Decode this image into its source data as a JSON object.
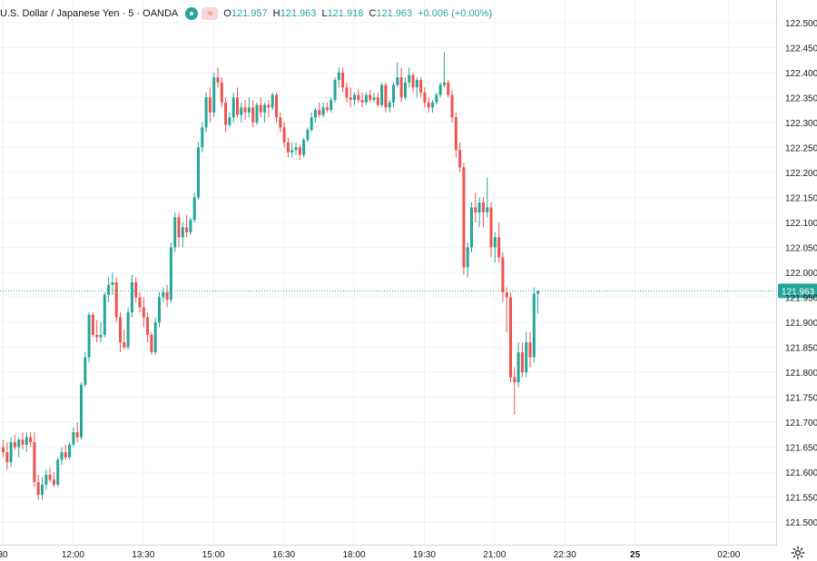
{
  "legend": {
    "symbol": "U.S. Dollar / Japanese Yen · 5 · OANDA",
    "open_label": "O",
    "open": "121.957",
    "high_label": "H",
    "high": "121.963",
    "low_label": "L",
    "low": "121.918",
    "close_label": "C",
    "close": "121.963",
    "change": "+0.006 (+0.00%)",
    "wave_icon": "≈"
  },
  "chart_data": {
    "type": "candlestick",
    "instrument": "U.S. Dollar / Japanese Yen",
    "interval": "5",
    "source": "OANDA",
    "price_axis_ticks": [
      "122.500",
      "122.450",
      "122.400",
      "122.350",
      "122.300",
      "122.250",
      "122.200",
      "122.150",
      "122.100",
      "122.050",
      "122.000",
      "121.950",
      "121.900",
      "121.850",
      "121.800",
      "121.750",
      "121.700",
      "121.650",
      "121.600",
      "121.550",
      "121.500"
    ],
    "time_axis_ticks": [
      {
        "label": "30",
        "bar": 0
      },
      {
        "label": "12:00",
        "bar": 18
      },
      {
        "label": "13:30",
        "bar": 36
      },
      {
        "label": "15:00",
        "bar": 54
      },
      {
        "label": "16:30",
        "bar": 72
      },
      {
        "label": "18:00",
        "bar": 90
      },
      {
        "label": "19:30",
        "bar": 108
      },
      {
        "label": "21:00",
        "bar": 126
      },
      {
        "label": "22:30",
        "bar": 144
      },
      {
        "label": "25",
        "bar": 162
      },
      {
        "label": "02:00",
        "bar": 186
      }
    ],
    "ylim": [
      121.455,
      122.545
    ],
    "last_price": "121.963",
    "current_price_line": 121.963,
    "colors": {
      "up": "#26a69a",
      "down": "#ef5350",
      "grid": "#f0f3fa",
      "text": "#131722"
    },
    "candles": [
      [
        121.65,
        121.665,
        121.63,
        121.64
      ],
      [
        121.64,
        121.66,
        121.605,
        121.62
      ],
      [
        121.62,
        121.67,
        121.61,
        121.66
      ],
      [
        121.66,
        121.675,
        121.645,
        121.65
      ],
      [
        121.65,
        121.67,
        121.63,
        121.665
      ],
      [
        121.665,
        121.68,
        121.645,
        121.655
      ],
      [
        121.655,
        121.68,
        121.64,
        121.67
      ],
      [
        121.67,
        121.68,
        121.65,
        121.66
      ],
      [
        121.66,
        121.68,
        121.57,
        121.58
      ],
      [
        121.58,
        121.595,
        121.545,
        121.555
      ],
      [
        121.555,
        121.59,
        121.545,
        121.575
      ],
      [
        121.575,
        121.605,
        121.565,
        121.595
      ],
      [
        121.595,
        121.61,
        121.58,
        121.585
      ],
      [
        121.585,
        121.6,
        121.57,
        121.575
      ],
      [
        121.575,
        121.63,
        121.57,
        121.625
      ],
      [
        121.625,
        121.65,
        121.615,
        121.64
      ],
      [
        121.64,
        121.655,
        121.625,
        121.63
      ],
      [
        121.63,
        121.66,
        121.625,
        121.655
      ],
      [
        121.655,
        121.69,
        121.65,
        121.68
      ],
      [
        121.68,
        121.7,
        121.66,
        121.67
      ],
      [
        121.67,
        121.78,
        121.665,
        121.775
      ],
      [
        121.775,
        121.84,
        121.77,
        121.83
      ],
      [
        121.83,
        121.92,
        121.82,
        121.915
      ],
      [
        121.915,
        121.92,
        121.87,
        121.875
      ],
      [
        121.875,
        121.905,
        121.86,
        121.87
      ],
      [
        121.87,
        121.9,
        121.86,
        121.875
      ],
      [
        121.875,
        121.96,
        121.87,
        121.955
      ],
      [
        121.955,
        121.99,
        121.94,
        121.975
      ],
      [
        121.975,
        122.0,
        121.955,
        121.98
      ],
      [
        121.98,
        121.99,
        121.9,
        121.91
      ],
      [
        121.91,
        121.92,
        121.84,
        121.86
      ],
      [
        121.86,
        121.885,
        121.845,
        121.85
      ],
      [
        121.85,
        121.93,
        121.845,
        121.92
      ],
      [
        121.92,
        121.995,
        121.91,
        121.98
      ],
      [
        121.98,
        121.99,
        121.94,
        121.95
      ],
      [
        121.95,
        121.96,
        121.92,
        121.93
      ],
      [
        121.93,
        121.95,
        121.89,
        121.91
      ],
      [
        121.91,
        121.92,
        121.86,
        121.875
      ],
      [
        121.875,
        121.88,
        121.835,
        121.84
      ],
      [
        121.84,
        121.91,
        121.835,
        121.9
      ],
      [
        121.9,
        121.96,
        121.89,
        121.95
      ],
      [
        121.95,
        121.97,
        121.94,
        121.96
      ],
      [
        121.96,
        121.975,
        121.93,
        121.945
      ],
      [
        121.945,
        122.06,
        121.94,
        122.05
      ],
      [
        122.05,
        122.12,
        122.04,
        122.11
      ],
      [
        122.11,
        122.12,
        122.05,
        122.07
      ],
      [
        122.07,
        122.1,
        122.05,
        122.09
      ],
      [
        122.09,
        122.115,
        122.07,
        122.08
      ],
      [
        122.08,
        122.11,
        122.075,
        122.105
      ],
      [
        122.105,
        122.16,
        122.1,
        122.15
      ],
      [
        122.15,
        122.26,
        122.145,
        122.25
      ],
      [
        122.25,
        122.3,
        122.24,
        122.29
      ],
      [
        122.29,
        122.36,
        122.28,
        122.35
      ],
      [
        122.35,
        122.37,
        122.3,
        122.32
      ],
      [
        122.32,
        122.4,
        122.31,
        122.39
      ],
      [
        122.39,
        122.41,
        122.37,
        122.38
      ],
      [
        122.38,
        122.39,
        122.33,
        122.34
      ],
      [
        122.34,
        122.35,
        122.28,
        122.295
      ],
      [
        122.295,
        122.32,
        122.29,
        122.31
      ],
      [
        122.31,
        122.36,
        122.3,
        122.35
      ],
      [
        122.35,
        122.37,
        122.31,
        122.315
      ],
      [
        122.315,
        122.34,
        122.3,
        122.33
      ],
      [
        122.33,
        122.345,
        122.305,
        122.32
      ],
      [
        122.32,
        122.35,
        122.31,
        122.33
      ],
      [
        122.33,
        122.345,
        122.29,
        122.3
      ],
      [
        122.3,
        122.34,
        122.295,
        122.335
      ],
      [
        122.335,
        122.35,
        122.31,
        122.32
      ],
      [
        122.32,
        122.34,
        122.3,
        122.335
      ],
      [
        122.335,
        122.345,
        122.31,
        122.33
      ],
      [
        122.33,
        122.36,
        122.325,
        122.355
      ],
      [
        122.355,
        122.36,
        122.3,
        122.31
      ],
      [
        122.31,
        122.32,
        122.28,
        122.29
      ],
      [
        122.29,
        122.3,
        122.25,
        122.26
      ],
      [
        122.26,
        122.27,
        122.23,
        122.24
      ],
      [
        122.24,
        122.26,
        122.23,
        122.245
      ],
      [
        122.245,
        122.26,
        122.235,
        122.25
      ],
      [
        122.25,
        122.255,
        122.225,
        122.235
      ],
      [
        122.235,
        122.27,
        122.23,
        122.265
      ],
      [
        122.265,
        122.29,
        122.26,
        122.285
      ],
      [
        122.285,
        122.32,
        122.28,
        122.31
      ],
      [
        122.31,
        122.33,
        122.3,
        122.325
      ],
      [
        122.325,
        122.34,
        122.31,
        122.315
      ],
      [
        122.315,
        122.34,
        122.31,
        122.33
      ],
      [
        122.33,
        122.34,
        122.32,
        122.325
      ],
      [
        122.325,
        122.35,
        122.32,
        122.345
      ],
      [
        122.345,
        122.39,
        122.34,
        122.385
      ],
      [
        122.385,
        122.41,
        122.37,
        122.4
      ],
      [
        122.4,
        122.41,
        122.36,
        122.37
      ],
      [
        122.37,
        122.38,
        122.34,
        122.35
      ],
      [
        122.35,
        122.37,
        122.33,
        122.345
      ],
      [
        122.345,
        122.36,
        122.335,
        122.355
      ],
      [
        122.355,
        122.365,
        122.34,
        122.345
      ],
      [
        122.345,
        122.36,
        122.33,
        122.34
      ],
      [
        122.34,
        122.36,
        122.335,
        122.355
      ],
      [
        122.355,
        122.365,
        122.34,
        122.345
      ],
      [
        122.345,
        122.36,
        122.34,
        122.35
      ],
      [
        122.35,
        122.36,
        122.33,
        122.335
      ],
      [
        122.335,
        122.38,
        122.33,
        122.375
      ],
      [
        122.375,
        122.38,
        122.32,
        122.33
      ],
      [
        122.33,
        122.345,
        122.32,
        122.34
      ],
      [
        122.34,
        122.38,
        122.33,
        122.375
      ],
      [
        122.375,
        122.42,
        122.37,
        122.39
      ],
      [
        122.39,
        122.41,
        122.34,
        122.35
      ],
      [
        122.35,
        122.39,
        122.345,
        122.38
      ],
      [
        122.38,
        122.41,
        122.37,
        122.395
      ],
      [
        122.395,
        122.4,
        122.36,
        122.37
      ],
      [
        122.37,
        122.39,
        122.35,
        122.385
      ],
      [
        122.385,
        122.39,
        122.35,
        122.36
      ],
      [
        122.36,
        122.37,
        122.33,
        122.34
      ],
      [
        122.34,
        122.35,
        122.32,
        122.33
      ],
      [
        122.33,
        122.345,
        122.32,
        122.34
      ],
      [
        122.34,
        122.36,
        122.335,
        122.355
      ],
      [
        122.355,
        122.38,
        122.35,
        122.375
      ],
      [
        122.375,
        122.44,
        122.37,
        122.38
      ],
      [
        122.38,
        122.385,
        122.35,
        122.355
      ],
      [
        122.355,
        122.365,
        122.3,
        122.31
      ],
      [
        122.31,
        122.32,
        122.23,
        122.245
      ],
      [
        122.245,
        122.26,
        122.2,
        122.21
      ],
      [
        122.21,
        122.22,
        121.995,
        122.01
      ],
      [
        122.01,
        122.06,
        121.99,
        122.05
      ],
      [
        122.05,
        122.14,
        122.04,
        122.13
      ],
      [
        122.13,
        122.16,
        122.1,
        122.12
      ],
      [
        122.12,
        122.15,
        122.09,
        122.14
      ],
      [
        122.14,
        122.15,
        122.09,
        122.12
      ],
      [
        122.12,
        122.19,
        122.11,
        122.13
      ],
      [
        122.13,
        122.14,
        122.03,
        122.05
      ],
      [
        122.05,
        122.08,
        122.02,
        122.07
      ],
      [
        122.07,
        122.1,
        122.02,
        122.03
      ],
      [
        122.03,
        122.04,
        121.94,
        121.96
      ],
      [
        121.96,
        121.97,
        121.88,
        121.95
      ],
      [
        121.95,
        121.96,
        121.78,
        121.79
      ],
      [
        121.79,
        121.81,
        121.715,
        121.78
      ],
      [
        121.78,
        121.86,
        121.77,
        121.84
      ],
      [
        121.84,
        121.86,
        121.79,
        121.8
      ],
      [
        121.8,
        121.88,
        121.79,
        121.86
      ],
      [
        121.86,
        121.88,
        121.81,
        121.83
      ],
      [
        121.83,
        121.97,
        121.82,
        121.957
      ],
      [
        121.957,
        121.963,
        121.918,
        121.963
      ]
    ]
  },
  "axes": {
    "last_price_label": "121.963"
  },
  "settings": {
    "gear_icon": "gear-icon"
  }
}
